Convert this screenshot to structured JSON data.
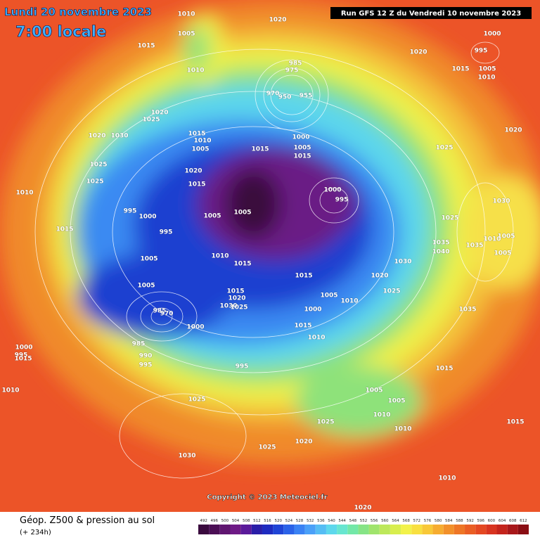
{
  "header": {
    "date": "Lundi 20 novembre 2023",
    "local_time": "7:00 locale",
    "run": "Run GFS 12 Z du Vendredi 10 novembre 2023"
  },
  "copyright": "Copyright © 2023 Meteociel.fr",
  "footer": {
    "title": "Géop. Z500 & pression au sol",
    "lead_time": "(+ 234h)"
  },
  "isobar_labels": [
    "1010",
    "1005",
    "1010",
    "1020",
    "1015",
    "1020",
    "1000",
    "995",
    "1005",
    "1015",
    "1010",
    "985",
    "975",
    "970",
    "950",
    "955",
    "1020",
    "1025",
    "1020",
    "1030",
    "1015",
    "1010",
    "1005",
    "1000",
    "1005",
    "1015",
    "1015",
    "1025",
    "1020",
    "1025",
    "1025",
    "1020",
    "1015",
    "1010",
    "1000",
    "995",
    "1005",
    "1005",
    "995",
    "1000",
    "995",
    "1015",
    "1025",
    "1030",
    "1035",
    "1040",
    "1035",
    "1010",
    "1005",
    "1005",
    "1010",
    "1015",
    "1005",
    "1030",
    "1020",
    "1015",
    "1005",
    "1025",
    "1005",
    "1010",
    "1000",
    "1015",
    "1020",
    "1030",
    "1025",
    "985",
    "970",
    "1000",
    "1015",
    "1010",
    "1035",
    "985",
    "990",
    "995",
    "995",
    "1000",
    "995",
    "1015",
    "1015",
    "1010",
    "1025",
    "1005",
    "1005",
    "1010",
    "1025",
    "1010",
    "1015",
    "1020",
    "1025",
    "1030",
    "1010",
    "1020"
  ],
  "legend": {
    "values": [
      492,
      496,
      500,
      504,
      508,
      512,
      516,
      520,
      524,
      528,
      532,
      536,
      540,
      544,
      548,
      552,
      556,
      560,
      564,
      568,
      572,
      576,
      580,
      584,
      588,
      592,
      596,
      600,
      604,
      608,
      612
    ],
    "colors": [
      "#3a0a3e",
      "#4b0f55",
      "#5f1570",
      "#6e1a86",
      "#5a1a9a",
      "#2a1ea8",
      "#1e2bc0",
      "#1f44d6",
      "#2a62e8",
      "#3a82f4",
      "#4aa0f8",
      "#55bdf4",
      "#5ed8ec",
      "#68e6d0",
      "#73e8a8",
      "#86e486",
      "#a0e46c",
      "#bde85a",
      "#d8ee4e",
      "#f2f24a",
      "#f8e040",
      "#f8c838",
      "#f6ac30",
      "#f2902a",
      "#ee7626",
      "#ea5e24",
      "#e44822",
      "#d83420",
      "#c4241c",
      "#a8181a",
      "#8a0e14"
    ]
  }
}
